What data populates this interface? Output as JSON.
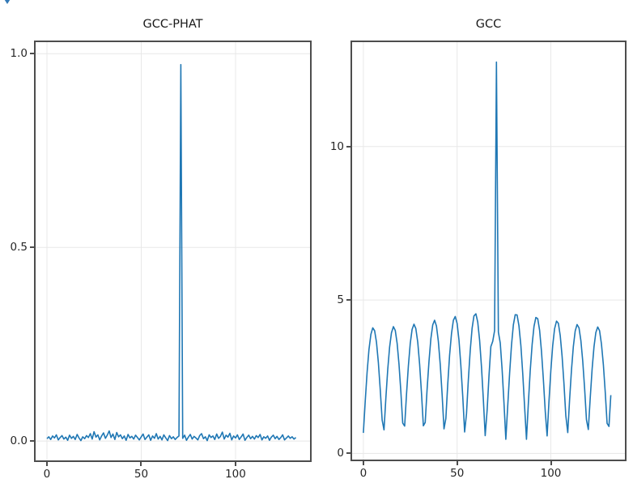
{
  "figure": {
    "background": "#ffffff",
    "corner_icon": {
      "glyph": "triangle-down",
      "color": "#3279b7"
    }
  },
  "chart_data": [
    {
      "type": "line",
      "title": "GCC-PHAT",
      "xlabel": "",
      "ylabel": "",
      "legend_position": "none",
      "grid": true,
      "grid_color": "#e8e8e8",
      "line_color": "#1f77b4",
      "x_start": 0,
      "x_step": 1,
      "xlim": [
        -6.0,
        139.5
      ],
      "ylim": [
        -0.05,
        1.03
      ],
      "x_ticks": [
        {
          "v": 0,
          "label": "0"
        },
        {
          "v": 50,
          "label": "50"
        },
        {
          "v": 100,
          "label": "100"
        }
      ],
      "y_ticks": [
        {
          "v": 0.0,
          "label": "0.0"
        },
        {
          "v": 0.5,
          "label": "0.5"
        },
        {
          "v": 1.0,
          "label": "1.0"
        }
      ],
      "peak": {
        "x": 71,
        "value": 0.972
      },
      "values": [
        0.006,
        0.011,
        0.004,
        0.013,
        0.008,
        0.016,
        0.003,
        0.009,
        0.014,
        0.005,
        0.01,
        0.002,
        0.015,
        0.007,
        0.012,
        0.004,
        0.017,
        0.008,
        0.001,
        0.011,
        0.006,
        0.014,
        0.009,
        0.019,
        0.005,
        0.024,
        0.01,
        0.016,
        0.003,
        0.013,
        0.021,
        0.007,
        0.015,
        0.026,
        0.009,
        0.018,
        0.004,
        0.022,
        0.011,
        0.016,
        0.006,
        0.013,
        0.002,
        0.017,
        0.008,
        0.012,
        0.005,
        0.015,
        0.009,
        0.003,
        0.011,
        0.018,
        0.004,
        0.01,
        0.016,
        0.002,
        0.013,
        0.007,
        0.019,
        0.005,
        0.012,
        0.003,
        0.016,
        0.008,
        0.001,
        0.014,
        0.006,
        0.011,
        0.004,
        0.009,
        0.013,
        0.972,
        0.007,
        0.015,
        0.002,
        0.01,
        0.017,
        0.005,
        0.012,
        0.008,
        0.003,
        0.014,
        0.019,
        0.006,
        0.011,
        0.001,
        0.016,
        0.009,
        0.013,
        0.004,
        0.018,
        0.007,
        0.012,
        0.023,
        0.005,
        0.015,
        0.01,
        0.02,
        0.003,
        0.013,
        0.008,
        0.016,
        0.004,
        0.011,
        0.018,
        0.002,
        0.009,
        0.015,
        0.006,
        0.012,
        0.005,
        0.014,
        0.009,
        0.017,
        0.003,
        0.011,
        0.007,
        0.013,
        0.002,
        0.01,
        0.015,
        0.006,
        0.012,
        0.004,
        0.009,
        0.016,
        0.003,
        0.008,
        0.013,
        0.007,
        0.011,
        0.005,
        0.009
      ]
    },
    {
      "type": "line",
      "title": "GCC",
      "xlabel": "",
      "ylabel": "",
      "legend_position": "none",
      "grid": true,
      "grid_color": "#e8e8e8",
      "line_color": "#1f77b4",
      "x_start": 0,
      "x_step": 1,
      "xlim": [
        -6.0,
        139.5
      ],
      "ylim": [
        -0.2,
        13.4
      ],
      "x_ticks": [
        {
          "v": 0,
          "label": "0"
        },
        {
          "v": 50,
          "label": "50"
        },
        {
          "v": 100,
          "label": "100"
        }
      ],
      "y_ticks": [
        {
          "v": 0,
          "label": "0"
        },
        {
          "v": 5,
          "label": "5"
        },
        {
          "v": 10,
          "label": "10"
        }
      ],
      "peak": {
        "x": 71,
        "value": 12.75
      },
      "values": [
        0.67,
        1.7,
        2.64,
        3.38,
        3.88,
        4.09,
        4.0,
        3.62,
        2.97,
        2.1,
        1.09,
        0.77,
        1.81,
        2.73,
        3.46,
        3.93,
        4.13,
        4.01,
        3.59,
        2.91,
        2.02,
        0.99,
        0.89,
        1.93,
        2.85,
        3.58,
        4.04,
        4.21,
        4.07,
        3.62,
        2.9,
        1.97,
        0.9,
        1.01,
        2.08,
        3.01,
        3.74,
        4.19,
        4.34,
        4.15,
        3.66,
        2.89,
        1.91,
        0.8,
        1.14,
        2.24,
        3.19,
        3.91,
        4.34,
        4.46,
        4.24,
        3.7,
        2.88,
        1.85,
        0.7,
        1.29,
        2.4,
        3.35,
        4.07,
        4.48,
        4.55,
        4.28,
        3.69,
        2.83,
        1.77,
        0.58,
        1.41,
        2.53,
        3.48,
        3.65,
        4.0,
        12.75,
        3.95,
        3.6,
        2.74,
        1.65,
        0.46,
        1.53,
        2.62,
        3.53,
        4.19,
        4.52,
        4.51,
        4.16,
        3.51,
        2.6,
        1.52,
        0.46,
        1.62,
        2.68,
        3.55,
        4.14,
        4.43,
        4.39,
        4.02,
        3.34,
        2.44,
        1.37,
        0.57,
        1.7,
        2.7,
        3.51,
        4.06,
        4.31,
        4.24,
        3.84,
        3.17,
        2.28,
        1.23,
        0.68,
        1.76,
        2.72,
        3.48,
        3.99,
        4.2,
        4.09,
        3.68,
        3.01,
        2.13,
        1.1,
        0.78,
        1.82,
        2.75,
        3.47,
        3.94,
        4.12,
        4.0,
        3.57,
        2.89,
        2.0,
        0.98,
        0.88,
        1.9
      ]
    }
  ]
}
